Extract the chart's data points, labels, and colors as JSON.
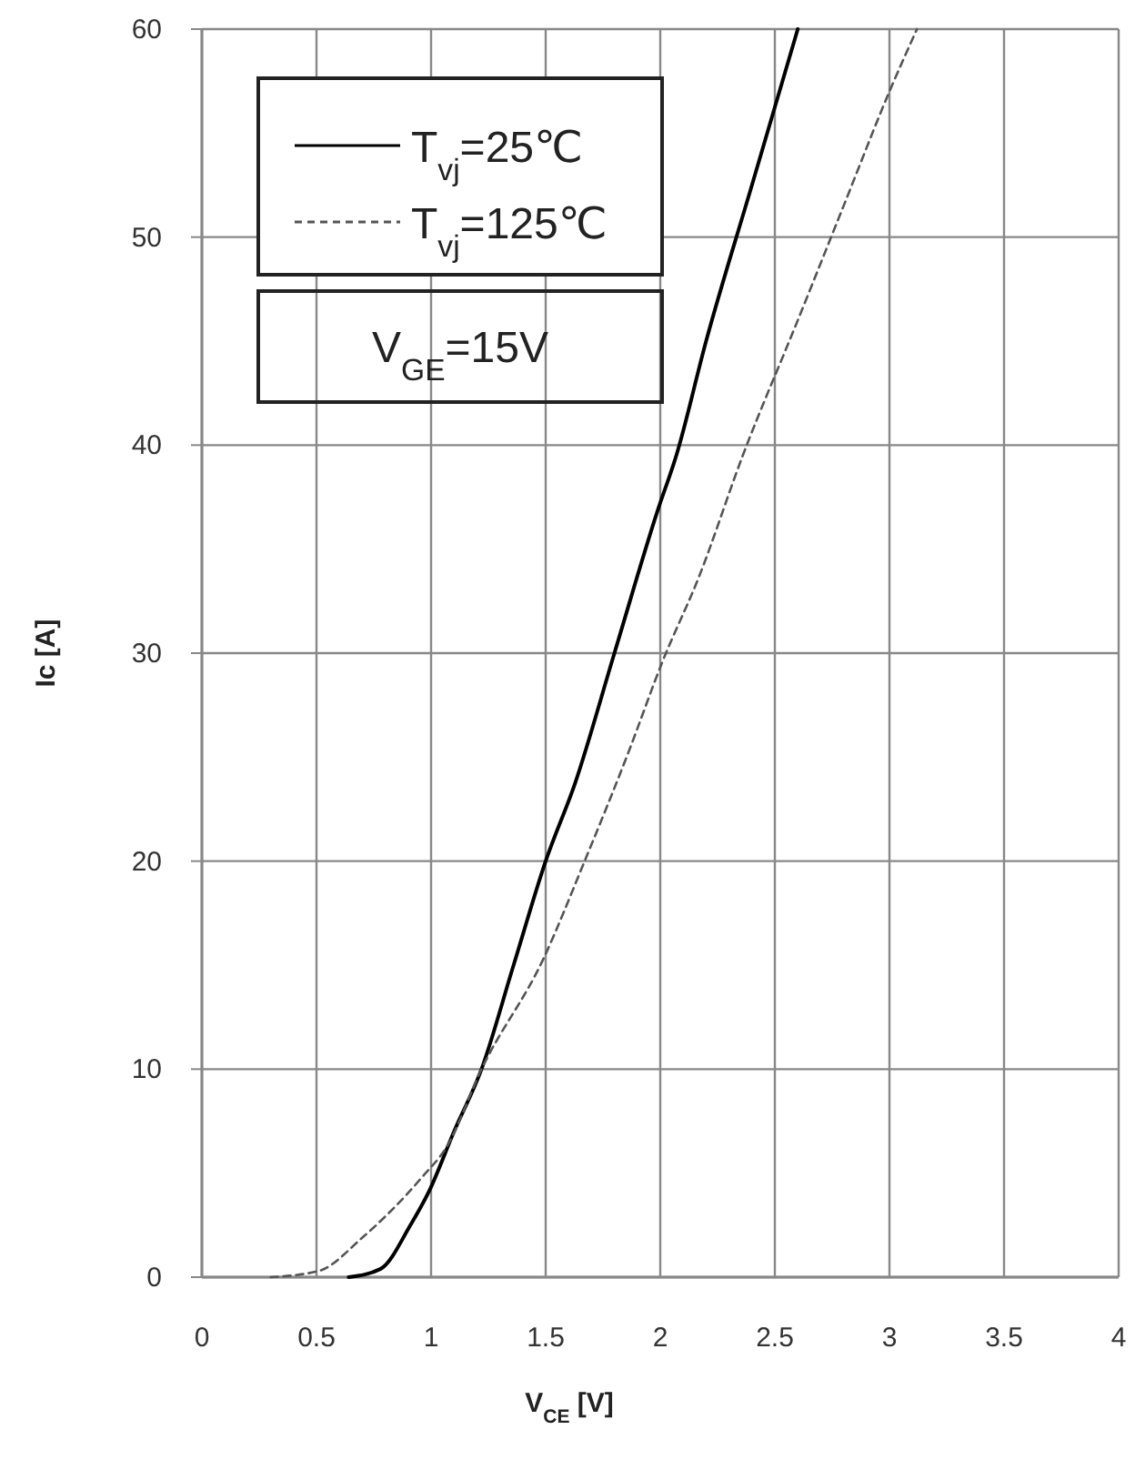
{
  "chart_data": {
    "type": "line",
    "xlabel": "V$_{CE}$  [V]",
    "ylabel": "Ic  [A]",
    "xlim": [
      0,
      4
    ],
    "xticks": [
      0,
      0.5,
      1,
      1.5,
      2,
      2.5,
      3,
      3.5,
      4
    ],
    "ylim": [
      0,
      60
    ],
    "yticks": [
      0,
      10,
      20,
      30,
      40,
      50,
      60
    ],
    "grid": true,
    "legend": "top left",
    "marker": "none",
    "annotations": [
      "V$_{GE}$=15V"
    ],
    "series": [
      {
        "name": "T$_{vj}$=25℃",
        "color": "#000000",
        "line_style": "solid",
        "x": [
          0.64,
          0.78,
          0.91,
          0.99,
          1.1,
          1.22,
          1.36,
          1.5,
          1.63,
          1.8,
          1.99,
          2.07,
          2.2,
          2.4,
          2.6
        ],
        "values": [
          0,
          0.4,
          2.5,
          4.1,
          7,
          10,
          15,
          20,
          23.8,
          30,
          36.9,
          39.5,
          45,
          52.5,
          60
        ]
      },
      {
        "name": "T$_{vj}$=125℃",
        "color": "#555555",
        "line_style": "dashed",
        "x": [
          0.3,
          0.51,
          0.7,
          0.96,
          1.07,
          1.22,
          1.49,
          1.67,
          1.86,
          2.01,
          2.17,
          2.36,
          2.6,
          2.8,
          3.0,
          3.12
        ],
        "values": [
          0,
          0.3,
          1.9,
          4.8,
          6.3,
          10,
          15.3,
          20,
          25.2,
          29.6,
          33.7,
          39.5,
          46,
          51.5,
          57,
          60
        ]
      }
    ]
  }
}
